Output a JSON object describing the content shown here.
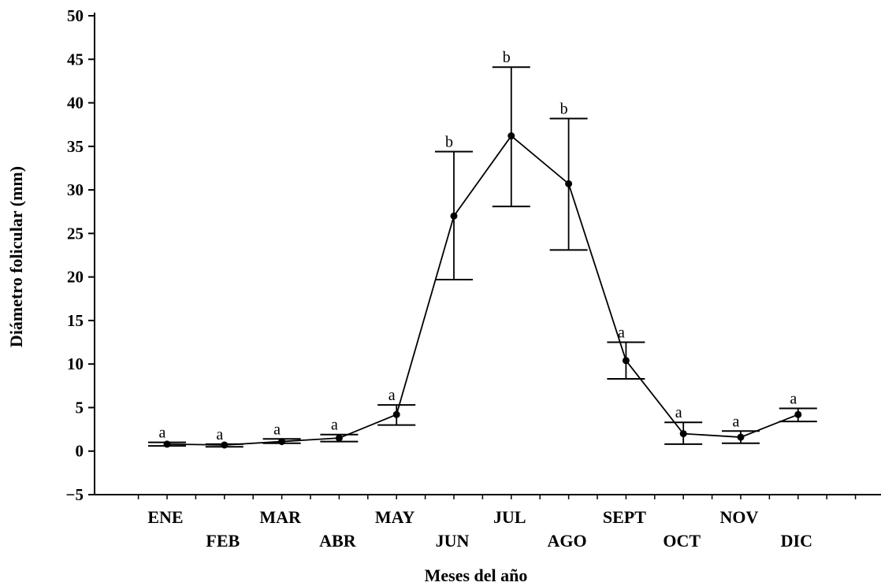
{
  "chart_data": {
    "type": "line",
    "title": "",
    "xlabel": "Meses del año",
    "ylabel": "Diámetro folicular (mm)",
    "ylim": [
      -5,
      50
    ],
    "yticks": [
      -5,
      0,
      5,
      10,
      15,
      20,
      25,
      30,
      35,
      40,
      45,
      50
    ],
    "categories": [
      "ENE",
      "FEB",
      "MAR",
      "ABR",
      "MAY",
      "JUN",
      "JUL",
      "AGO",
      "SEPT",
      "OCT",
      "NOV",
      "DIC"
    ],
    "grid": false,
    "legend": "none",
    "series": [
      {
        "values": [
          0.8,
          0.7,
          1.1,
          1.5,
          4.2,
          27.0,
          36.2,
          30.7,
          10.4,
          2.0,
          1.6,
          4.2
        ],
        "error_low": [
          0.6,
          0.5,
          0.9,
          1.1,
          3.0,
          19.7,
          28.1,
          23.1,
          8.3,
          0.8,
          0.9,
          3.4
        ],
        "error_high": [
          1.0,
          0.8,
          1.4,
          1.9,
          5.3,
          34.4,
          44.1,
          38.2,
          12.5,
          3.3,
          2.3,
          4.9
        ],
        "significance": [
          "a",
          "a",
          "a",
          "a",
          "a",
          "b",
          "b",
          "b",
          "a",
          "a",
          "a",
          "a"
        ]
      }
    ]
  }
}
